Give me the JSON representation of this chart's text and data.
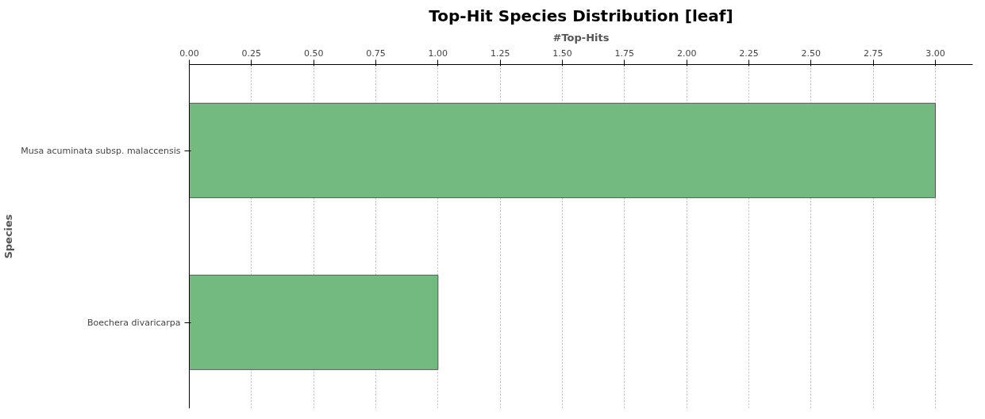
{
  "chart_data": {
    "type": "bar",
    "orientation": "horizontal",
    "title": "Top-Hit Species Distribution [leaf]",
    "xlabel": "#Top-Hits",
    "ylabel": "Species",
    "categories": [
      "Musa acuminata subsp. malaccensis",
      "Boechera divaricarpa"
    ],
    "values": [
      3,
      1
    ],
    "color": "#72ba80",
    "xlim": [
      0,
      3.15
    ],
    "xticks": [
      {
        "value": 0,
        "label": "0.00"
      },
      {
        "value": 0.25,
        "label": "0.25"
      },
      {
        "value": 0.5,
        "label": "0.50"
      },
      {
        "value": 0.75,
        "label": "0.75"
      },
      {
        "value": 1,
        "label": "1.00"
      },
      {
        "value": 1.25,
        "label": "1.25"
      },
      {
        "value": 1.5,
        "label": "1.50"
      },
      {
        "value": 1.75,
        "label": "1.75"
      },
      {
        "value": 2,
        "label": "2.00"
      },
      {
        "value": 2.25,
        "label": "2.25"
      },
      {
        "value": 2.5,
        "label": "2.50"
      },
      {
        "value": 2.75,
        "label": "2.75"
      },
      {
        "value": 3,
        "label": "3.00"
      }
    ],
    "grid": "x"
  }
}
